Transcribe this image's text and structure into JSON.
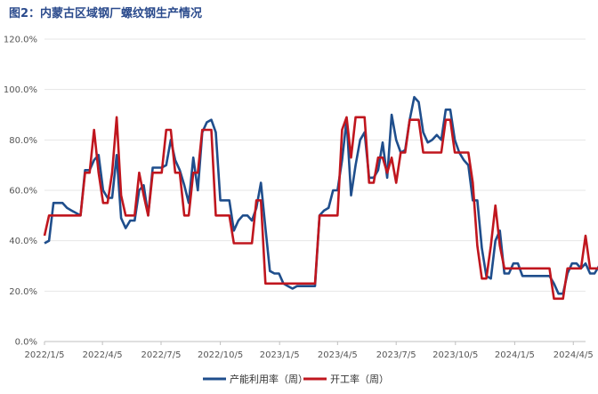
{
  "chart_data": {
    "type": "line",
    "title": "图2：内蒙古区域钢厂螺纹钢生产情况",
    "xlabel": "",
    "ylabel": "",
    "ylim": [
      0,
      120
    ],
    "yticks": [
      "0.0%",
      "20.0%",
      "40.0%",
      "60.0%",
      "80.0%",
      "100.0%",
      "120.0%"
    ],
    "ytick_values": [
      0,
      20,
      40,
      60,
      80,
      100,
      120
    ],
    "x_ticks": [
      "2022/1/5",
      "2022/4/5",
      "2022/7/5",
      "2022/10/5",
      "2023/1/5",
      "2023/4/5",
      "2023/7/5",
      "2023/10/5",
      "2024/1/5",
      "2024/4/5"
    ],
    "x_tick_positions": [
      0,
      90,
      181,
      273,
      365,
      455,
      546,
      638,
      730,
      821
    ],
    "x_max": 840,
    "grid": "horizontal",
    "legend_position": "bottom",
    "x_unit": "days since 2022/1/5",
    "series": [
      {
        "name": "产能利用率（周）",
        "color": "#1f4e8c",
        "points": [
          [
            0,
            39
          ],
          [
            7,
            40
          ],
          [
            14,
            55
          ],
          [
            21,
            55
          ],
          [
            28,
            55
          ],
          [
            35,
            53
          ],
          [
            42,
            52
          ],
          [
            49,
            51
          ],
          [
            56,
            50
          ],
          [
            63,
            68
          ],
          [
            70,
            68
          ],
          [
            77,
            72
          ],
          [
            84,
            74
          ],
          [
            91,
            60
          ],
          [
            98,
            57
          ],
          [
            105,
            57
          ],
          [
            112,
            74
          ],
          [
            119,
            49
          ],
          [
            126,
            45
          ],
          [
            133,
            48
          ],
          [
            140,
            48
          ],
          [
            147,
            60
          ],
          [
            154,
            62
          ],
          [
            161,
            50
          ],
          [
            168,
            69
          ],
          [
            175,
            69
          ],
          [
            182,
            69
          ],
          [
            189,
            70
          ],
          [
            196,
            80
          ],
          [
            203,
            72
          ],
          [
            210,
            68
          ],
          [
            217,
            62
          ],
          [
            224,
            55
          ],
          [
            231,
            73
          ],
          [
            238,
            60
          ],
          [
            245,
            83
          ],
          [
            252,
            87
          ],
          [
            259,
            88
          ],
          [
            266,
            83
          ],
          [
            273,
            56
          ],
          [
            280,
            56
          ],
          [
            287,
            56
          ],
          [
            294,
            44
          ],
          [
            301,
            48
          ],
          [
            308,
            50
          ],
          [
            315,
            50
          ],
          [
            322,
            48
          ],
          [
            329,
            53
          ],
          [
            336,
            63
          ],
          [
            343,
            45
          ],
          [
            350,
            28
          ],
          [
            357,
            27
          ],
          [
            364,
            27
          ],
          [
            371,
            23
          ],
          [
            378,
            22
          ],
          [
            385,
            21
          ],
          [
            392,
            22
          ],
          [
            399,
            22
          ],
          [
            406,
            22
          ],
          [
            413,
            22
          ],
          [
            420,
            22
          ],
          [
            427,
            50
          ],
          [
            434,
            52
          ],
          [
            441,
            53
          ],
          [
            448,
            60
          ],
          [
            455,
            60
          ],
          [
            462,
            72
          ],
          [
            469,
            88
          ],
          [
            476,
            58
          ],
          [
            483,
            70
          ],
          [
            490,
            80
          ],
          [
            497,
            83
          ],
          [
            504,
            65
          ],
          [
            511,
            65
          ],
          [
            518,
            68
          ],
          [
            525,
            79
          ],
          [
            532,
            65
          ],
          [
            539,
            90
          ],
          [
            546,
            80
          ],
          [
            553,
            75
          ],
          [
            560,
            76
          ],
          [
            567,
            88
          ],
          [
            574,
            97
          ],
          [
            581,
            95
          ],
          [
            588,
            83
          ],
          [
            595,
            79
          ],
          [
            602,
            80
          ],
          [
            609,
            82
          ],
          [
            616,
            80
          ],
          [
            623,
            92
          ],
          [
            630,
            92
          ],
          [
            637,
            80
          ],
          [
            644,
            75
          ],
          [
            651,
            72
          ],
          [
            658,
            70
          ],
          [
            665,
            56
          ],
          [
            672,
            56
          ],
          [
            679,
            37
          ],
          [
            686,
            26
          ],
          [
            693,
            25
          ],
          [
            700,
            40
          ],
          [
            707,
            44
          ],
          [
            714,
            27
          ],
          [
            721,
            27
          ],
          [
            728,
            31
          ],
          [
            735,
            31
          ],
          [
            742,
            26
          ],
          [
            749,
            26
          ],
          [
            756,
            26
          ],
          [
            763,
            26
          ],
          [
            770,
            26
          ],
          [
            777,
            26
          ],
          [
            784,
            26
          ],
          [
            791,
            23
          ],
          [
            798,
            19
          ],
          [
            805,
            19
          ],
          [
            812,
            27
          ],
          [
            819,
            31
          ],
          [
            826,
            31
          ],
          [
            833,
            29
          ],
          [
            840,
            31
          ],
          [
            847,
            27
          ],
          [
            854,
            27
          ],
          [
            861,
            30
          ],
          [
            866,
            31
          ]
        ]
      },
      {
        "name": "开工率（周）",
        "color": "#c0161e",
        "points": [
          [
            0,
            42
          ],
          [
            7,
            50
          ],
          [
            14,
            50
          ],
          [
            21,
            50
          ],
          [
            28,
            50
          ],
          [
            35,
            50
          ],
          [
            42,
            50
          ],
          [
            49,
            50
          ],
          [
            56,
            50
          ],
          [
            63,
            67
          ],
          [
            70,
            67
          ],
          [
            77,
            84
          ],
          [
            84,
            67
          ],
          [
            91,
            55
          ],
          [
            98,
            55
          ],
          [
            105,
            67
          ],
          [
            112,
            89
          ],
          [
            119,
            58
          ],
          [
            126,
            50
          ],
          [
            133,
            50
          ],
          [
            140,
            50
          ],
          [
            147,
            67
          ],
          [
            154,
            58
          ],
          [
            161,
            50
          ],
          [
            168,
            67
          ],
          [
            175,
            67
          ],
          [
            182,
            67
          ],
          [
            189,
            84
          ],
          [
            196,
            84
          ],
          [
            203,
            67
          ],
          [
            210,
            67
          ],
          [
            217,
            50
          ],
          [
            224,
            50
          ],
          [
            231,
            67
          ],
          [
            238,
            67
          ],
          [
            245,
            84
          ],
          [
            252,
            84
          ],
          [
            259,
            84
          ],
          [
            266,
            50
          ],
          [
            273,
            50
          ],
          [
            280,
            50
          ],
          [
            287,
            50
          ],
          [
            294,
            39
          ],
          [
            301,
            39
          ],
          [
            308,
            39
          ],
          [
            315,
            39
          ],
          [
            322,
            39
          ],
          [
            329,
            56
          ],
          [
            336,
            56
          ],
          [
            343,
            23
          ],
          [
            350,
            23
          ],
          [
            357,
            23
          ],
          [
            364,
            23
          ],
          [
            371,
            23
          ],
          [
            378,
            23
          ],
          [
            385,
            23
          ],
          [
            392,
            23
          ],
          [
            399,
            23
          ],
          [
            406,
            23
          ],
          [
            413,
            23
          ],
          [
            420,
            23
          ],
          [
            427,
            50
          ],
          [
            434,
            50
          ],
          [
            441,
            50
          ],
          [
            448,
            50
          ],
          [
            455,
            50
          ],
          [
            462,
            84
          ],
          [
            469,
            89
          ],
          [
            476,
            73
          ],
          [
            483,
            89
          ],
          [
            490,
            89
          ],
          [
            497,
            89
          ],
          [
            504,
            63
          ],
          [
            511,
            63
          ],
          [
            518,
            73
          ],
          [
            525,
            73
          ],
          [
            532,
            67
          ],
          [
            539,
            73
          ],
          [
            546,
            63
          ],
          [
            553,
            75
          ],
          [
            560,
            75
          ],
          [
            567,
            88
          ],
          [
            574,
            88
          ],
          [
            581,
            88
          ],
          [
            588,
            75
          ],
          [
            595,
            75
          ],
          [
            602,
            75
          ],
          [
            609,
            75
          ],
          [
            616,
            75
          ],
          [
            623,
            88
          ],
          [
            630,
            88
          ],
          [
            637,
            75
          ],
          [
            644,
            75
          ],
          [
            651,
            75
          ],
          [
            658,
            75
          ],
          [
            665,
            63
          ],
          [
            672,
            38
          ],
          [
            679,
            25
          ],
          [
            686,
            25
          ],
          [
            693,
            38
          ],
          [
            700,
            54
          ],
          [
            707,
            38
          ],
          [
            714,
            29
          ],
          [
            721,
            29
          ],
          [
            728,
            29
          ],
          [
            735,
            29
          ],
          [
            742,
            29
          ],
          [
            749,
            29
          ],
          [
            756,
            29
          ],
          [
            763,
            29
          ],
          [
            770,
            29
          ],
          [
            777,
            29
          ],
          [
            784,
            29
          ],
          [
            791,
            17
          ],
          [
            798,
            17
          ],
          [
            805,
            17
          ],
          [
            812,
            29
          ],
          [
            819,
            29
          ],
          [
            826,
            29
          ],
          [
            833,
            29
          ],
          [
            840,
            42
          ],
          [
            847,
            29
          ],
          [
            854,
            29
          ],
          [
            861,
            29
          ],
          [
            866,
            42
          ]
        ]
      }
    ]
  }
}
